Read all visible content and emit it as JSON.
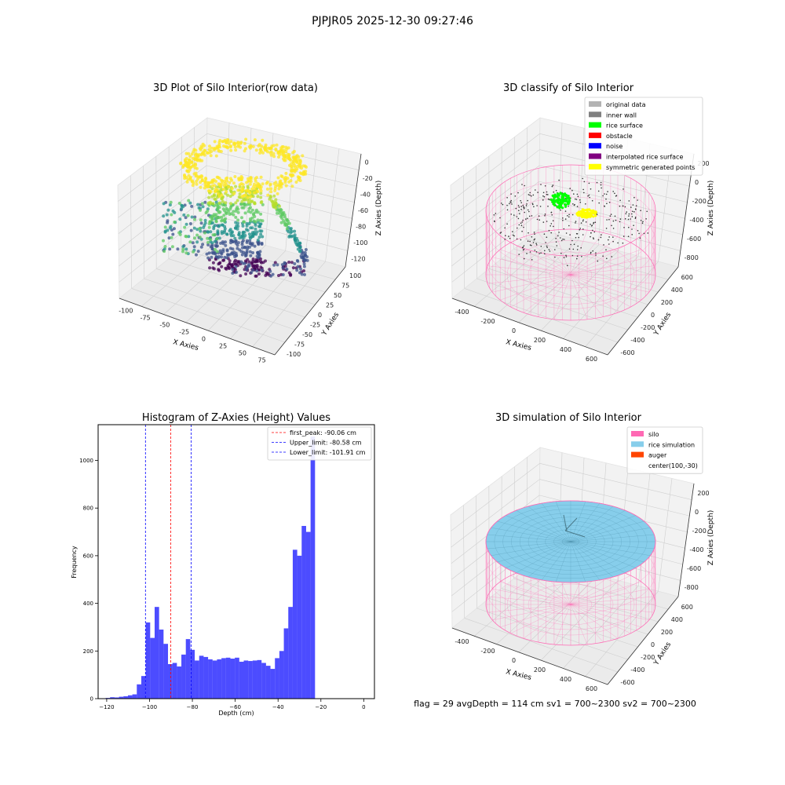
{
  "figure": {
    "suptitle": "PJPJR05 2025-12-30 09:27:46",
    "footer": "flag = 29  avgDepth = 114 cm  sv1 = 700~2300  sv2 = 700~2300"
  },
  "panels": {
    "raw": {
      "title": "3D Plot of Silo Interior(row data)",
      "xlabel": "X Axies",
      "ylabel": "Y Axies",
      "zlabel": "Z Axies (Depth)",
      "xticks": [
        "-100",
        "-75",
        "-50",
        "-25",
        "0",
        "25",
        "50",
        "75"
      ],
      "yticks": [
        "-100",
        "-75",
        "-50",
        "-25",
        "0",
        "25",
        "50",
        "75",
        "100"
      ],
      "zticks": [
        "0",
        "-20",
        "-40",
        "-60",
        "-80",
        "-100",
        "-120"
      ],
      "colormap": "viridis"
    },
    "classify": {
      "title": "3D classify of Silo Interior",
      "xlabel": "X Axies",
      "ylabel": "Y Axies",
      "zlabel": "Z Axies (Depth)",
      "xticks": [
        "-400",
        "-200",
        "0",
        "200",
        "400",
        "600"
      ],
      "yticks": [
        "-600",
        "-400",
        "-200",
        "0",
        "200",
        "400",
        "600"
      ],
      "zticks": [
        "200",
        "0",
        "-200",
        "-400",
        "-600",
        "-800"
      ],
      "legend": [
        {
          "label": "original data",
          "color": "#b3b3b3"
        },
        {
          "label": "inner wall",
          "color": "#808080"
        },
        {
          "label": "rice surface",
          "color": "#00ff00"
        },
        {
          "label": "obstacle",
          "color": "#ff0000"
        },
        {
          "label": "noise",
          "color": "#0000ff"
        },
        {
          "label": "interpolated rice surface",
          "color": "#800080"
        },
        {
          "label": "symmetric generated points",
          "color": "#ffff00"
        }
      ]
    },
    "simulation": {
      "title": "3D simulation of Silo Interior",
      "xlabel": "X Axies",
      "ylabel": "Y Axies",
      "zlabel": "Z Axies (Depth)",
      "xticks": [
        "-400",
        "-200",
        "0",
        "200",
        "400",
        "600"
      ],
      "yticks": [
        "-600",
        "-400",
        "-200",
        "0",
        "200",
        "400",
        "600"
      ],
      "zticks": [
        "200",
        "0",
        "-200",
        "-400",
        "-600",
        "-800"
      ],
      "legend": [
        {
          "label": "silo",
          "color": "#ff69b4"
        },
        {
          "label": "rice simulation",
          "color": "#87ceeb"
        },
        {
          "label": "auger",
          "color": "#ff4500"
        },
        {
          "label": "center(100,-30)",
          "color": ""
        }
      ]
    }
  },
  "chart_data": {
    "type": "bar",
    "title": "Histogram of Z-Axies (Height) Values",
    "xlabel": "Depth (cm)",
    "ylabel": "Frequency",
    "xlim": [
      -124,
      5
    ],
    "ylim": [
      0,
      1150
    ],
    "xticks": [
      -120,
      -100,
      -80,
      -60,
      -40,
      -20,
      0
    ],
    "yticks": [
      0,
      200,
      400,
      600,
      800,
      1000
    ],
    "bar_color": "#0000ff",
    "bin_start": -120.5,
    "bin_width": 2.08,
    "values": [
      3,
      6,
      5,
      8,
      10,
      14,
      18,
      60,
      95,
      320,
      255,
      385,
      290,
      230,
      145,
      150,
      135,
      185,
      250,
      205,
      160,
      180,
      175,
      165,
      160,
      165,
      170,
      172,
      168,
      172,
      155,
      160,
      158,
      160,
      162,
      150,
      138,
      125,
      170,
      200,
      295,
      385,
      625,
      600,
      725,
      700,
      1100
    ],
    "lines": [
      {
        "label": "first_peak: -90.06 cm",
        "x": -90.06,
        "color": "#ff0000"
      },
      {
        "label": "Upper_limit: -80.58 cm",
        "x": -80.58,
        "color": "#0000ff"
      },
      {
        "label": "Lower_limit: -101.91 cm",
        "x": -101.91,
        "color": "#0000ff"
      }
    ],
    "legend_position": "upper right"
  }
}
